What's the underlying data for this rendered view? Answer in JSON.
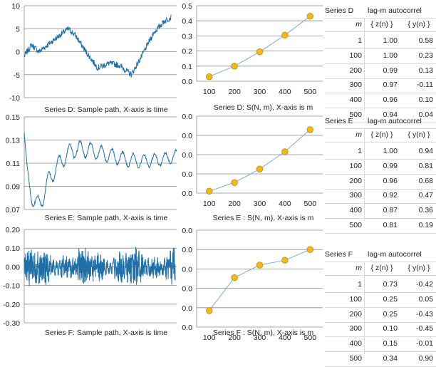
{
  "colors": {
    "path": "#1f6fa8",
    "marker_fill": "#f2b81e",
    "marker_stroke": "#c08a00",
    "line": "#7fa7d4",
    "grid": "#8a8a8a"
  },
  "chart_data": [
    {
      "type": "line",
      "name": "series-d-sample-path",
      "caption": "Series D: Sample path, X-axis is time",
      "yticks": [
        "10",
        "5",
        "0",
        "-5",
        "-10"
      ],
      "ylim": [
        -10,
        10
      ],
      "xlabel": "time"
    },
    {
      "type": "line",
      "name": "series-e-sample-path",
      "caption": "Series E: Sample path, X-axis is time",
      "yticks": [
        "0.15",
        "0.13",
        "0.11",
        "0.09",
        "0.07"
      ],
      "ylim": [
        0.07,
        0.15
      ],
      "xlabel": "time"
    },
    {
      "type": "line",
      "name": "series-f-sample-path",
      "caption": "Series F: Sample path, X-axis is time",
      "yticks": [
        "0.20",
        "0.10",
        "0.00",
        "-0.10",
        "-0.20",
        "-0.30"
      ],
      "ylim": [
        -0.3,
        0.2
      ],
      "xlabel": "time"
    },
    {
      "type": "line",
      "name": "series-d-snm",
      "caption": "Series D: S(N, m), X-axis is m",
      "x": [
        100,
        200,
        300,
        400,
        500
      ],
      "xticks": [
        "100",
        "200",
        "300",
        "400",
        "500"
      ],
      "yticks": [
        "0.5",
        "0.4",
        "0.3",
        "0.2",
        "0.1",
        "0.0"
      ],
      "ylim": [
        0.0,
        0.5
      ],
      "values": [
        0.03,
        0.1,
        0.195,
        0.305,
        0.43
      ]
    },
    {
      "type": "line",
      "name": "series-e-snm",
      "caption": "Series E : S(N, m), X-axis is m",
      "x": [
        100,
        200,
        300,
        400,
        500
      ],
      "xticks": [
        "100",
        "200",
        "300",
        "400",
        "500"
      ],
      "yticks": [
        "0.0",
        "0.0",
        "0.0",
        "0.0",
        "0.0"
      ],
      "ylim": [
        0,
        4
      ],
      "values": [
        0.1,
        0.55,
        1.25,
        2.15,
        3.3
      ]
    },
    {
      "type": "line",
      "name": "series-f-snm",
      "caption": "Series F : S(N, m), X-axis is m",
      "x": [
        100,
        200,
        300,
        400,
        500
      ],
      "xticks": [
        "100",
        "200",
        "300",
        "400",
        "500"
      ],
      "yticks": [
        "0.0",
        "0.0",
        "0.0",
        "0.0",
        "0.0",
        "0.0"
      ],
      "ylim": [
        0,
        5
      ],
      "values": [
        0.85,
        2.55,
        3.2,
        3.45,
        4.0
      ]
    }
  ],
  "tables": [
    {
      "name": "series-d-table",
      "series_label": "Series D",
      "title": "lag-m autocorrel",
      "m_header": "m",
      "z_header": "{ z(n) }",
      "y_header": "{ y(n) }",
      "rows": [
        {
          "m": "1",
          "z": "1.00",
          "y": "0.58"
        },
        {
          "m": "100",
          "z": "1.00",
          "y": "0.23"
        },
        {
          "m": "200",
          "z": "0.99",
          "y": "0.13"
        },
        {
          "m": "300",
          "z": "0.97",
          "y": "-0.11"
        },
        {
          "m": "400",
          "z": "0.96",
          "y": "0.10"
        },
        {
          "m": "500",
          "z": "0.94",
          "y": "0.04"
        }
      ]
    },
    {
      "name": "series-e-table",
      "series_label": "Series E",
      "title": "lag-m autocorrel",
      "m_header": "m",
      "z_header": "{ z(n) }",
      "y_header": "{ y(n) }",
      "rows": [
        {
          "m": "1",
          "z": "1.00",
          "y": "0.94"
        },
        {
          "m": "100",
          "z": "0.99",
          "y": "0.81"
        },
        {
          "m": "200",
          "z": "0.96",
          "y": "0.68"
        },
        {
          "m": "300",
          "z": "0.92",
          "y": "0.47"
        },
        {
          "m": "400",
          "z": "0.87",
          "y": "0.36"
        },
        {
          "m": "500",
          "z": "0.81",
          "y": "0.19"
        }
      ]
    },
    {
      "name": "series-f-table",
      "series_label": "Series F",
      "title": "lag-m autocorrel",
      "m_header": "m",
      "z_header": "{ z(n) }",
      "y_header": "{ y(n) }",
      "rows": [
        {
          "m": "1",
          "z": "0.73",
          "y": "-0.42"
        },
        {
          "m": "100",
          "z": "0.25",
          "y": "0.05"
        },
        {
          "m": "200",
          "z": "0.25",
          "y": "-0.43"
        },
        {
          "m": "300",
          "z": "0.10",
          "y": "-0.45"
        },
        {
          "m": "400",
          "z": "0.15",
          "y": "-0.01"
        },
        {
          "m": "500",
          "z": "0.34",
          "y": "0.90"
        }
      ]
    }
  ]
}
